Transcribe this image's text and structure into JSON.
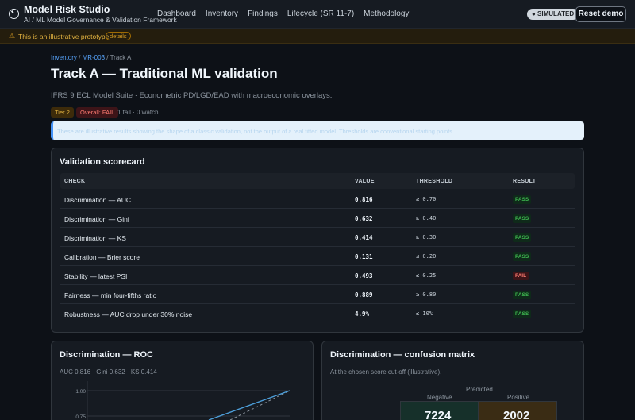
{
  "app": {
    "title": "Model Risk Studio",
    "tagline": "AI / ML Model Governance & Validation Framework",
    "nav": [
      "Dashboard",
      "Inventory",
      "Findings",
      "Lifecycle (SR 11-7)",
      "Methodology"
    ],
    "simulated_badge": "● SIMULATED",
    "reset_label": "Reset demo"
  },
  "banner": {
    "icon": "warning-icon",
    "text": "This is an illustrative prototype.",
    "details_label": "details"
  },
  "breadcrumb": {
    "root": "Inventory",
    "model": "MR-003",
    "current": "Track A",
    "sep": " / "
  },
  "page": {
    "title": "Track A — Traditional ML validation",
    "subtitle": "IFRS 9 ECL Model Suite · Econometric PD/LGD/EAD with macroeconomic overlays.",
    "tier_badge": "Tier 2",
    "overall_badge": "Overall: FAIL",
    "counts": "1 fail · 0 watch",
    "notice": "These are illustrative results showing the shape of a classic validation, not the output of a real fitted model. Thresholds are conventional starting points."
  },
  "scorecard": {
    "title": "Validation scorecard",
    "columns": [
      "CHECK",
      "VALUE",
      "THRESHOLD",
      "RESULT"
    ],
    "rows": [
      {
        "check": "Discrimination — AUC",
        "value": "0.816",
        "threshold": "≥ 0.70",
        "result": "PASS"
      },
      {
        "check": "Discrimination — Gini",
        "value": "0.632",
        "threshold": "≥ 0.40",
        "result": "PASS"
      },
      {
        "check": "Discrimination — KS",
        "value": "0.414",
        "threshold": "≥ 0.30",
        "result": "PASS"
      },
      {
        "check": "Calibration — Brier score",
        "value": "0.131",
        "threshold": "≤ 0.20",
        "result": "PASS"
      },
      {
        "check": "Stability — latest PSI",
        "value": "0.493",
        "threshold": "≤ 0.25",
        "result": "FAIL"
      },
      {
        "check": "Fairness — min four-fifths ratio",
        "value": "0.889",
        "threshold": "≥ 0.80",
        "result": "PASS"
      },
      {
        "check": "Robustness — AUC drop under 30% noise",
        "value": "4.9%",
        "threshold": "≤ 10%",
        "result": "PASS"
      }
    ]
  },
  "roc": {
    "title": "Discrimination — ROC",
    "subtitle": "AUC 0.816 · Gini 0.632 · KS 0.414",
    "ticks": [
      "1.00",
      "0.75"
    ]
  },
  "confusion": {
    "title": "Discrimination — confusion matrix",
    "subtitle": "At the chosen score cut-off (illustrative).",
    "predicted_label": "Predicted",
    "negative_label": "Negative",
    "positive_label": "Positive",
    "tn": "7224",
    "fp": "2002"
  },
  "colors": {
    "accent": "#58a6ff",
    "pass": "#3fb950",
    "fail": "#ff7b72",
    "warn": "#d29922",
    "roc_line": "#4c9ed9"
  }
}
